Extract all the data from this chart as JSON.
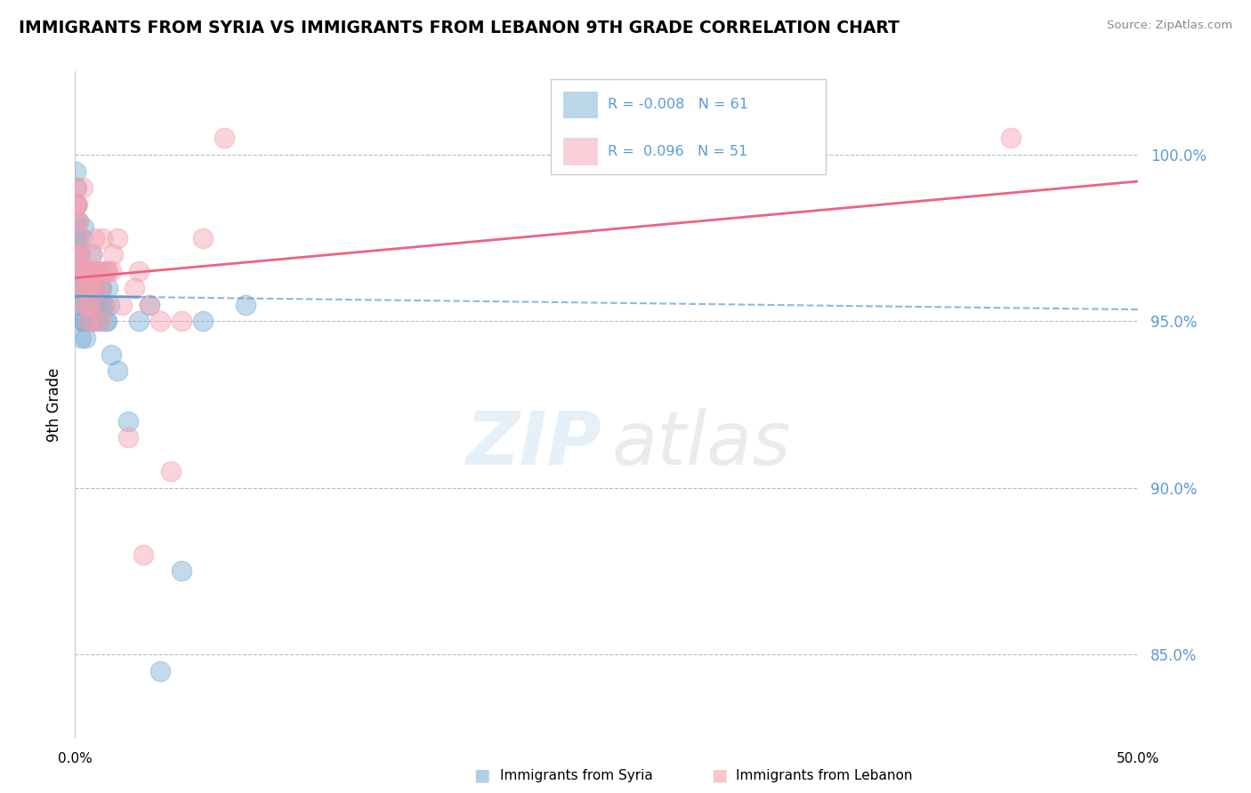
{
  "title": "IMMIGRANTS FROM SYRIA VS IMMIGRANTS FROM LEBANON 9TH GRADE CORRELATION CHART",
  "source": "Source: ZipAtlas.com",
  "ylabel": "9th Grade",
  "y_tick_values": [
    100.0,
    95.0,
    90.0,
    85.0
  ],
  "xlim": [
    0.0,
    50.0
  ],
  "ylim": [
    82.5,
    102.5
  ],
  "legend_syria": "R = -0.008   N = 61",
  "legend_lebanon": "R =  0.096   N = 51",
  "syria_color": "#7bafd4",
  "lebanon_color": "#f4a0b0",
  "syria_line_color": "#5b9bd5",
  "lebanon_line_color": "#f06080",
  "syria_trend": [
    95.75,
    95.35
  ],
  "lebanon_trend": [
    96.3,
    99.2
  ],
  "syria_x": [
    0.05,
    0.08,
    0.1,
    0.12,
    0.15,
    0.18,
    0.2,
    0.22,
    0.25,
    0.28,
    0.3,
    0.32,
    0.35,
    0.38,
    0.4,
    0.42,
    0.45,
    0.47,
    0.5,
    0.55,
    0.58,
    0.6,
    0.65,
    0.68,
    0.7,
    0.75,
    0.78,
    0.8,
    0.85,
    0.88,
    0.9,
    0.95,
    1.0,
    1.05,
    1.1,
    1.15,
    1.2,
    1.25,
    1.3,
    1.35,
    1.4,
    1.45,
    1.5,
    1.55,
    1.6,
    1.7,
    0.02,
    0.04,
    0.06,
    0.09,
    0.16,
    0.24,
    0.33,
    2.0,
    2.5,
    3.0,
    3.5,
    4.0,
    5.0,
    6.0,
    8.0
  ],
  "syria_y": [
    99.0,
    98.5,
    97.5,
    97.0,
    98.0,
    96.0,
    96.5,
    95.5,
    97.0,
    94.5,
    95.5,
    97.5,
    96.0,
    96.0,
    97.8,
    95.0,
    95.0,
    95.5,
    94.5,
    95.5,
    96.0,
    95.5,
    96.5,
    95.5,
    95.0,
    96.0,
    95.0,
    97.0,
    95.5,
    96.0,
    96.0,
    95.0,
    95.5,
    96.5,
    95.0,
    95.5,
    96.0,
    96.0,
    95.5,
    95.5,
    96.5,
    95.0,
    95.0,
    96.0,
    95.5,
    94.0,
    99.5,
    98.0,
    97.5,
    97.0,
    96.5,
    96.0,
    95.0,
    93.5,
    92.0,
    95.0,
    95.5,
    84.5,
    87.5,
    95.0,
    95.5
  ],
  "lebanon_x": [
    0.02,
    0.04,
    0.06,
    0.08,
    0.1,
    0.12,
    0.15,
    0.18,
    0.2,
    0.22,
    0.25,
    0.3,
    0.35,
    0.38,
    0.4,
    0.45,
    0.5,
    0.55,
    0.58,
    0.6,
    0.65,
    0.7,
    0.75,
    0.78,
    0.8,
    0.85,
    0.9,
    1.0,
    1.05,
    1.1,
    1.2,
    1.25,
    1.3,
    1.4,
    1.5,
    1.55,
    1.7,
    1.8,
    2.0,
    2.2,
    2.5,
    2.8,
    3.0,
    3.5,
    4.0,
    4.5,
    5.0,
    6.0,
    7.0,
    44.0,
    3.2
  ],
  "lebanon_y": [
    99.0,
    98.5,
    98.0,
    98.5,
    98.5,
    97.0,
    98.0,
    97.5,
    97.0,
    96.5,
    97.0,
    96.0,
    99.0,
    96.0,
    96.5,
    95.5,
    96.5,
    96.0,
    95.5,
    95.0,
    96.5,
    95.5,
    96.5,
    96.0,
    97.0,
    95.0,
    97.5,
    96.0,
    96.5,
    96.5,
    96.0,
    95.0,
    97.5,
    95.5,
    96.5,
    96.5,
    96.5,
    97.0,
    97.5,
    95.5,
    91.5,
    96.0,
    96.5,
    95.5,
    95.0,
    90.5,
    95.0,
    97.5,
    100.5,
    100.5,
    88.0
  ]
}
